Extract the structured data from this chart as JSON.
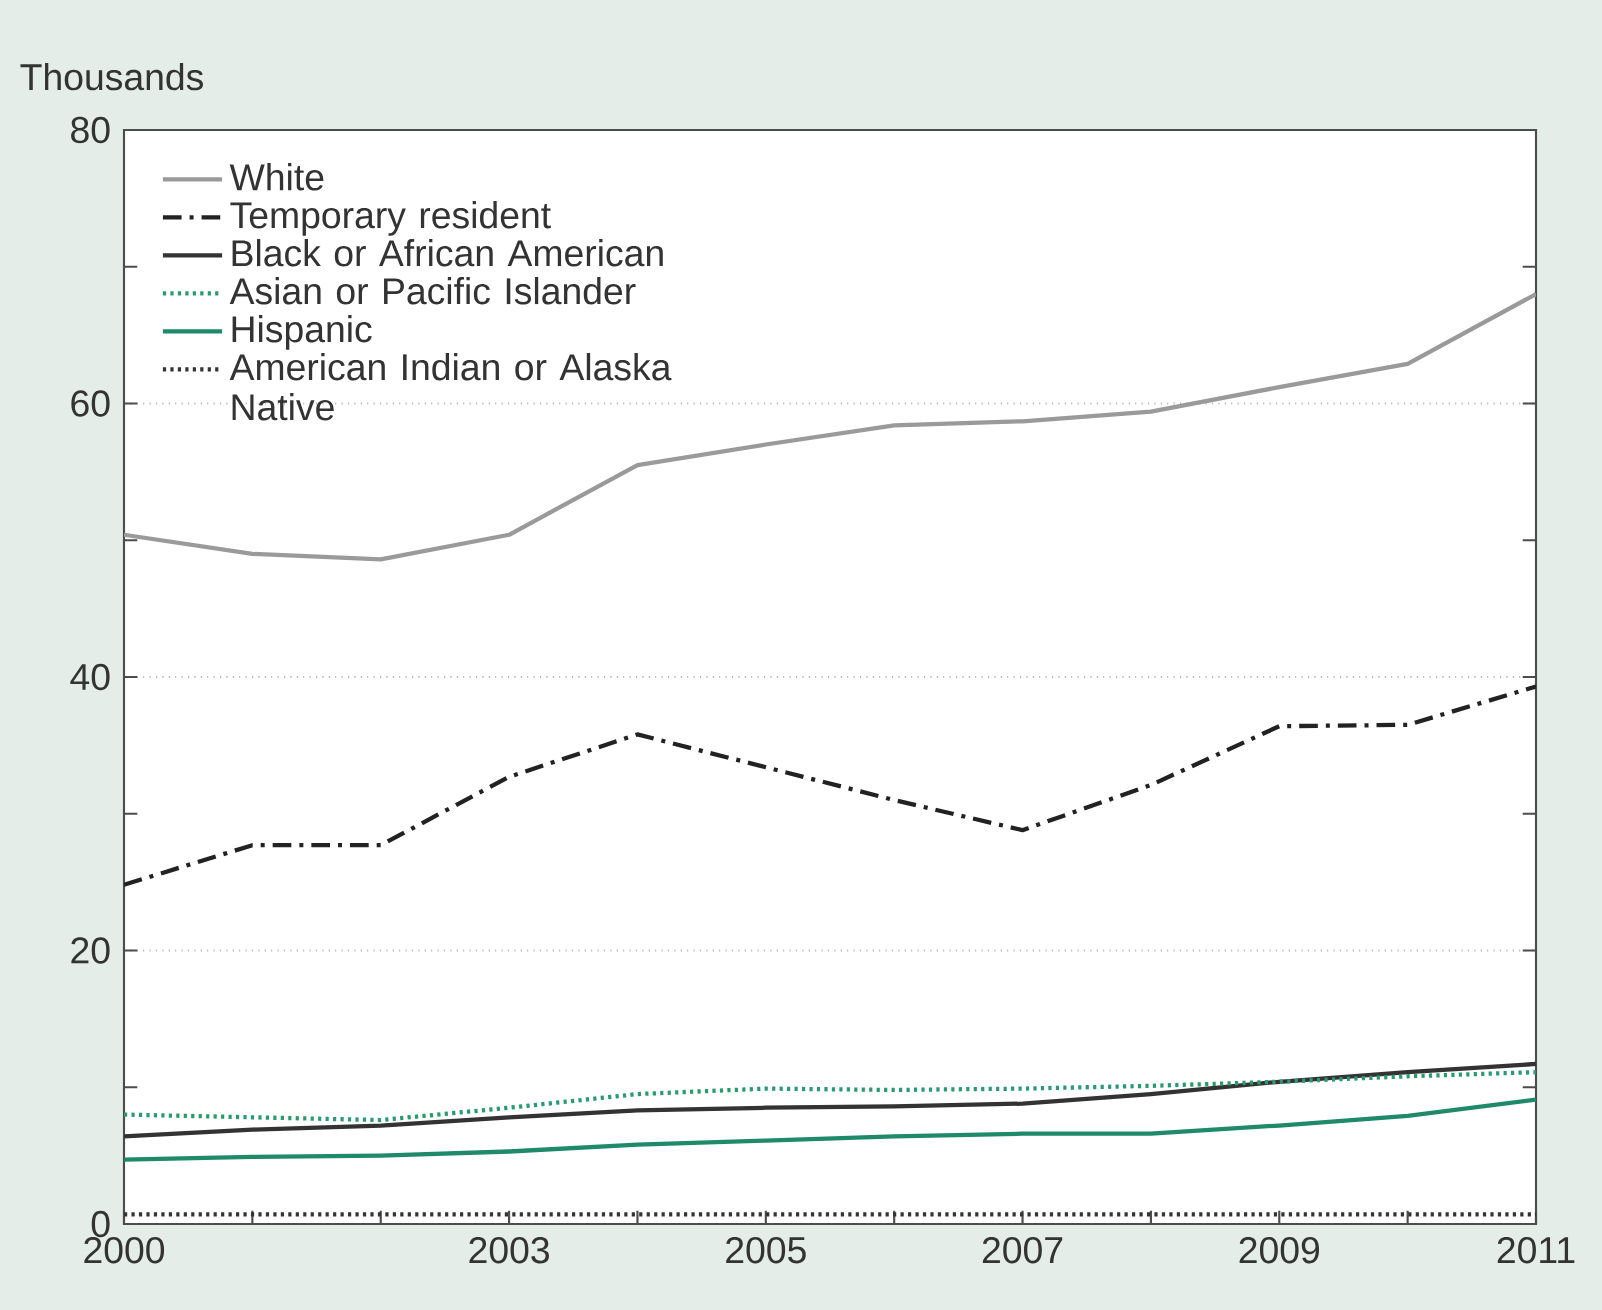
{
  "chart_data": {
    "type": "line",
    "ylabel": "Thousands",
    "x": [
      2000,
      2001,
      2002,
      2003,
      2004,
      2005,
      2006,
      2007,
      2008,
      2009,
      2010,
      2011
    ],
    "xlim": [
      2000,
      2011
    ],
    "xticks": [
      2000,
      {
        "value": 2001,
        "label": null
      },
      {
        "value": 2002,
        "label": null
      },
      2003,
      {
        "value": 2004,
        "label": null
      },
      2005,
      {
        "value": 2006,
        "label": null
      },
      2007,
      {
        "value": 2008,
        "label": null
      },
      2009,
      {
        "value": 2010,
        "label": null
      },
      2011
    ],
    "ylim": [
      0,
      80
    ],
    "yticks": [
      0,
      {
        "value": 10,
        "label": null
      },
      20,
      {
        "value": 30,
        "label": null
      },
      40,
      {
        "value": 50,
        "label": null
      },
      60,
      {
        "value": 70,
        "label": null
      },
      80
    ],
    "grid": "y",
    "legend": "top left",
    "series": [
      {
        "name": "White",
        "color": "#9a9a9a",
        "line_style": "solid",
        "values": [
          50.4,
          49,
          48.6,
          50.4,
          55.5,
          57,
          58.4,
          58.7,
          59.4,
          61.2,
          62.9,
          68
        ]
      },
      {
        "name": "Temporary resident",
        "color": "#222222",
        "line_style": "dashed",
        "values": [
          24.8,
          27.7,
          27.7,
          32.7,
          35.8,
          33.4,
          31,
          28.8,
          32.1,
          36.4,
          36.5,
          39.3
        ]
      },
      {
        "name": "Black or African American",
        "color": "#333333",
        "line_style": "solid",
        "values": [
          6.4,
          6.9,
          7.2,
          7.8,
          8.3,
          8.5,
          8.6,
          8.8,
          9.5,
          10.4,
          11.1,
          11.7
        ]
      },
      {
        "name": "Asian or Pacific Islander",
        "color": "#2a9a70",
        "line_style": "dotted",
        "values": [
          8.0,
          7.8,
          7.6,
          8.5,
          9.5,
          9.9,
          9.8,
          9.9,
          10.1,
          10.4,
          10.8,
          11.1
        ]
      },
      {
        "name": "Hispanic",
        "color": "#1f8a6a",
        "line_style": "solid",
        "values": [
          4.7,
          4.9,
          5.0,
          5.3,
          5.8,
          6.1,
          6.4,
          6.6,
          6.6,
          7.2,
          7.9,
          9.1
        ]
      },
      {
        "name": "American Indian or Alaska Native",
        "color": "#333333",
        "line_style": "dotted",
        "values": [
          0.7,
          0.7,
          0.7,
          0.7,
          0.7,
          0.7,
          0.7,
          0.7,
          0.7,
          0.7,
          0.7,
          0.7
        ]
      }
    ]
  }
}
